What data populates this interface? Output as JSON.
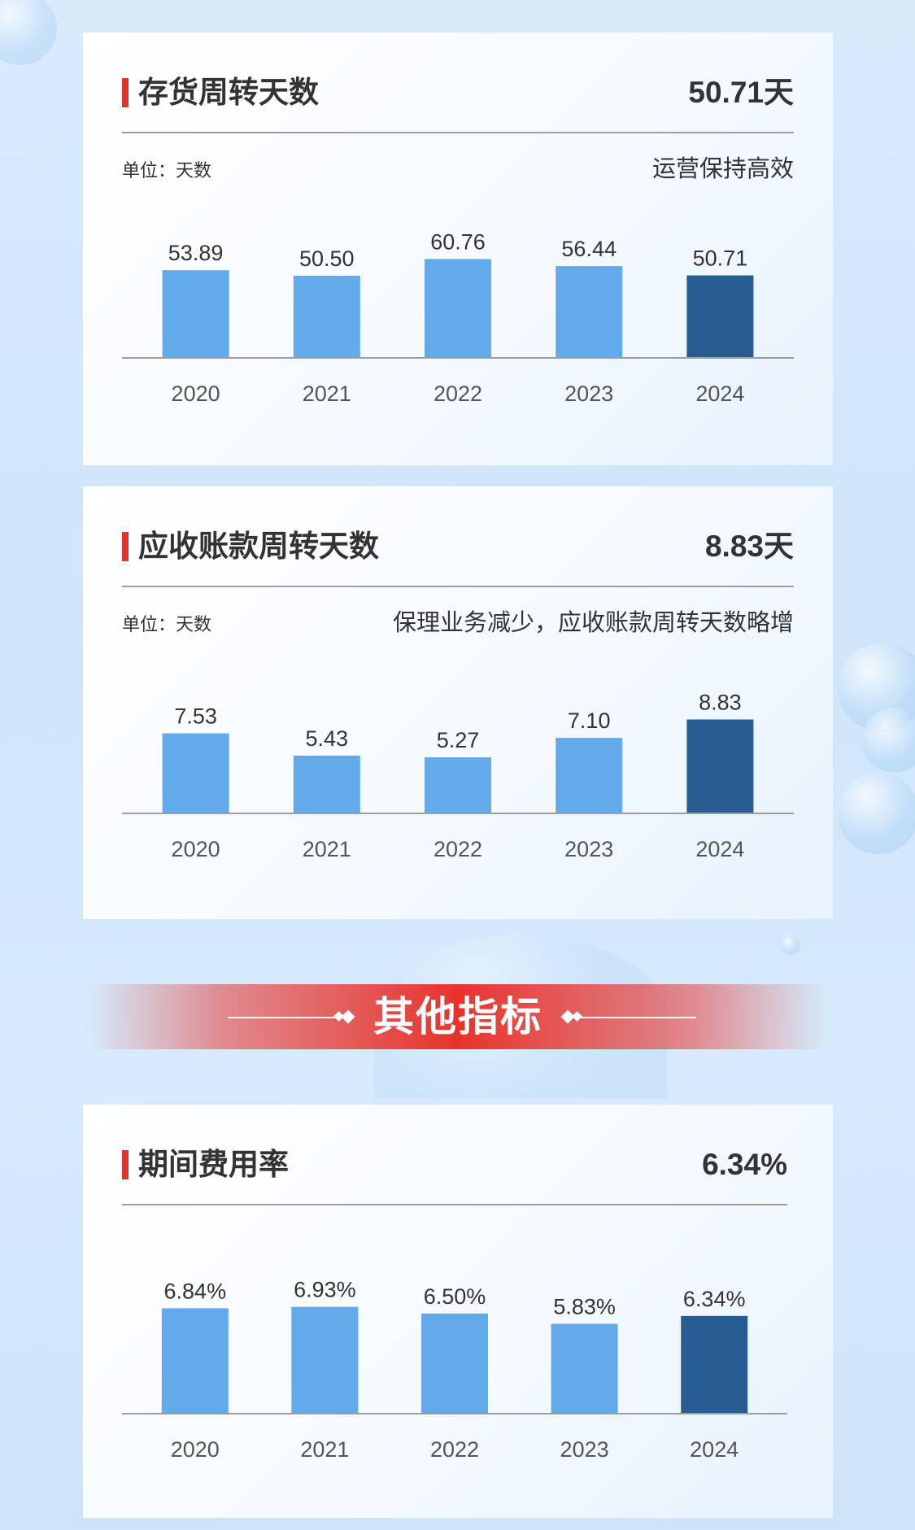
{
  "colors": {
    "bar": "#62aaea",
    "highlight": "#285d94",
    "accent": "#e0342e",
    "axis": "#9e9e9e"
  },
  "banner": {
    "title": "其他指标"
  },
  "chart_data": [
    {
      "type": "bar",
      "title": "存货周转天数",
      "headline_value": "50.71天",
      "unit_label": "单位：天数",
      "note": "运营保持高效",
      "categories": [
        "2020",
        "2021",
        "2022",
        "2023",
        "2024"
      ],
      "values": [
        53.89,
        50.5,
        60.76,
        56.44,
        50.71
      ],
      "value_labels": [
        "53.89",
        "50.50",
        "60.76",
        "56.44",
        "50.71"
      ],
      "highlight_index": 4,
      "ylim": [
        0,
        75
      ]
    },
    {
      "type": "bar",
      "title": "应收账款周转天数",
      "headline_value": "8.83天",
      "unit_label": "单位：天数",
      "note": "保理业务减少，应收账款周转天数略增",
      "categories": [
        "2020",
        "2021",
        "2022",
        "2023",
        "2024"
      ],
      "values": [
        7.53,
        5.43,
        5.27,
        7.1,
        8.83
      ],
      "value_labels": [
        "7.53",
        "5.43",
        "5.27",
        "7.10",
        "8.83"
      ],
      "highlight_index": 4,
      "ylim": [
        0,
        13
      ]
    },
    {
      "type": "bar",
      "title": "期间费用率",
      "headline_value": "6.34%",
      "unit_label": "",
      "note": "",
      "categories": [
        "2020",
        "2021",
        "2022",
        "2023",
        "2024"
      ],
      "values": [
        6.84,
        6.93,
        6.5,
        5.83,
        6.34
      ],
      "value_labels": [
        "6.84%",
        "6.93%",
        "6.50%",
        "5.83%",
        "6.34%"
      ],
      "highlight_index": 4,
      "ylim": [
        0,
        9.5
      ]
    }
  ]
}
